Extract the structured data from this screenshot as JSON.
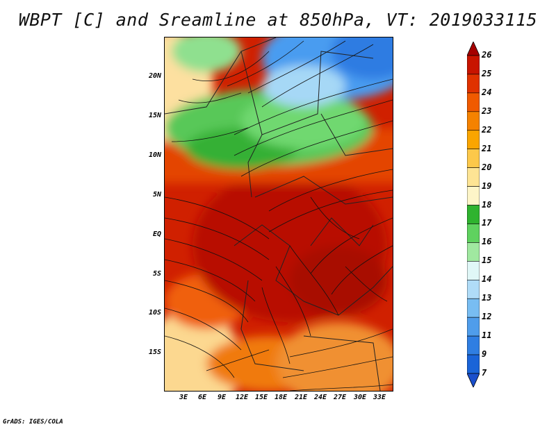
{
  "title": "WBPT [C] and Sreamline at 850hPa, VT: 2019033115",
  "footer": "GrADS: IGES/COLA",
  "map": {
    "variable": "Wet-bulb potential temperature",
    "overlay": "streamlines",
    "lat_ticks": [
      "20N",
      "15N",
      "10N",
      "5N",
      "EQ",
      "5S",
      "10S",
      "15S"
    ],
    "lon_ticks": [
      "3E",
      "6E",
      "9E",
      "12E",
      "15E",
      "18E",
      "21E",
      "24E",
      "27E",
      "30E",
      "33E"
    ]
  },
  "colorbar": {
    "levels": [
      "26",
      "25",
      "24",
      "23",
      "22",
      "21",
      "20",
      "19",
      "18",
      "17",
      "16",
      "15",
      "14",
      "13",
      "12",
      "11",
      "9",
      "7"
    ],
    "colors": [
      "#a50000",
      "#c81400",
      "#e03200",
      "#f05a00",
      "#f58200",
      "#faa500",
      "#fcc84a",
      "#fde494",
      "#fdf5c8",
      "#2fb32f",
      "#5fd25f",
      "#a0e8a0",
      "#e0f7f7",
      "#b0dcf8",
      "#78bdf2",
      "#4f9deb",
      "#2f7ee2",
      "#1a64d8",
      "#1a4fcc"
    ]
  }
}
